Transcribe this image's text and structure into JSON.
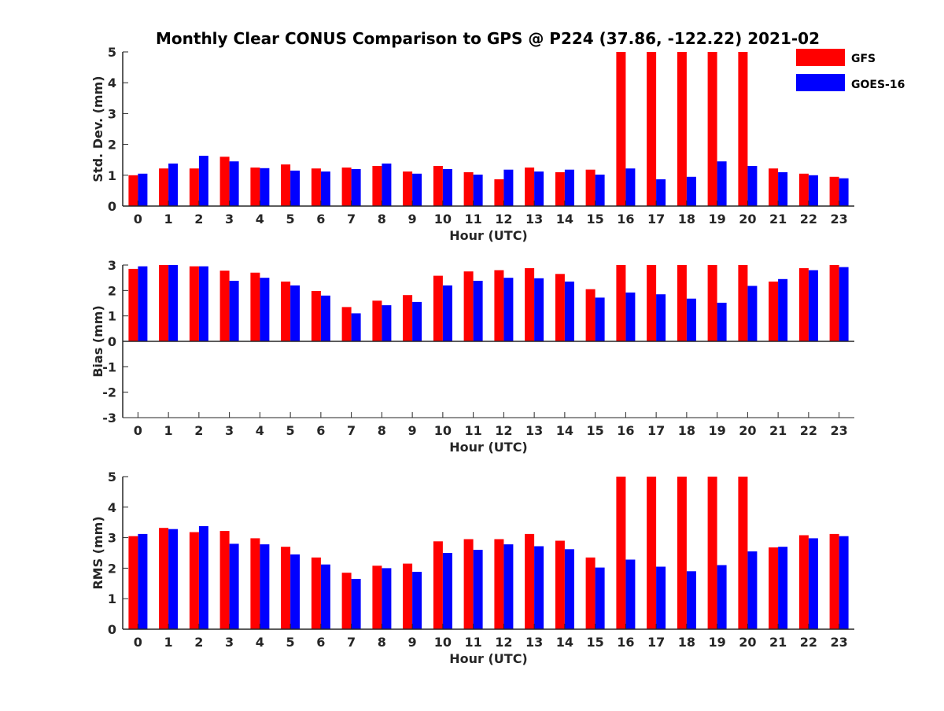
{
  "chart_data": {
    "type": "bar",
    "title": "Monthly Clear CONUS Comparison to GPS @ P224 (37.86, -122.22) 2021-02",
    "legend": {
      "placement": "top-right",
      "entries": [
        {
          "name": "GFS",
          "color": "#ff0000"
        },
        {
          "name": "GOES-16",
          "color": "#0000ff"
        }
      ]
    },
    "categories": [
      "0",
      "1",
      "2",
      "3",
      "4",
      "5",
      "6",
      "7",
      "8",
      "9",
      "10",
      "11",
      "12",
      "13",
      "14",
      "15",
      "16",
      "17",
      "18",
      "19",
      "20",
      "21",
      "22",
      "23"
    ],
    "panels": [
      {
        "ylabel": "Std. Dev. (mm)",
        "xlabel": "Hour (UTC)",
        "ylim": [
          0,
          5
        ],
        "yticks": [
          "0",
          "1",
          "2",
          "3",
          "4",
          "5"
        ],
        "series": [
          {
            "name": "GFS",
            "values": [
              1.0,
              1.22,
              1.22,
              1.6,
              1.25,
              1.35,
              1.22,
              1.25,
              1.3,
              1.12,
              1.3,
              1.1,
              0.87,
              1.25,
              1.1,
              1.18,
              5,
              5,
              5,
              5,
              5,
              1.22,
              1.05,
              0.95
            ]
          },
          {
            "name": "GOES-16",
            "values": [
              1.05,
              1.38,
              1.63,
              1.45,
              1.23,
              1.15,
              1.12,
              1.2,
              1.38,
              1.05,
              1.2,
              1.02,
              1.18,
              1.12,
              1.18,
              1.02,
              1.22,
              0.87,
              0.95,
              1.45,
              1.3,
              1.1,
              1.0,
              0.9
            ]
          }
        ]
      },
      {
        "ylabel": "Bias (mm)",
        "xlabel": "Hour (UTC)",
        "ylim": [
          -3,
          3
        ],
        "yticks": [
          "-3",
          "-2",
          "-1",
          "0",
          "1",
          "2",
          "3"
        ],
        "series": [
          {
            "name": "GFS",
            "values": [
              2.85,
              3,
              2.95,
              2.78,
              2.7,
              2.35,
              1.98,
              1.35,
              1.6,
              1.82,
              2.58,
              2.75,
              2.8,
              2.88,
              2.65,
              2.05,
              3,
              3,
              3,
              3,
              3,
              2.35,
              2.88,
              3
            ]
          },
          {
            "name": "GOES-16",
            "values": [
              2.95,
              3,
              2.95,
              2.38,
              2.5,
              2.2,
              1.8,
              1.1,
              1.42,
              1.55,
              2.2,
              2.38,
              2.5,
              2.48,
              2.35,
              1.72,
              1.92,
              1.85,
              1.68,
              1.52,
              2.18,
              2.45,
              2.8,
              2.92
            ]
          }
        ]
      },
      {
        "ylabel": "RMS (mm)",
        "xlabel": "Hour (UTC)",
        "ylim": [
          0,
          5
        ],
        "yticks": [
          "0",
          "1",
          "2",
          "3",
          "4",
          "5"
        ],
        "series": [
          {
            "name": "GFS",
            "values": [
              3.05,
              3.32,
              3.18,
              3.22,
              2.98,
              2.7,
              2.35,
              1.85,
              2.08,
              2.15,
              2.88,
              2.95,
              2.95,
              3.12,
              2.9,
              2.35,
              5,
              5,
              5,
              5,
              5,
              2.68,
              3.08,
              3.12
            ]
          },
          {
            "name": "GOES-16",
            "values": [
              3.12,
              3.28,
              3.38,
              2.8,
              2.78,
              2.45,
              2.12,
              1.65,
              2.0,
              1.88,
              2.5,
              2.6,
              2.78,
              2.72,
              2.62,
              2.02,
              2.28,
              2.05,
              1.9,
              2.1,
              2.55,
              2.7,
              2.98,
              3.05
            ]
          }
        ]
      }
    ]
  }
}
